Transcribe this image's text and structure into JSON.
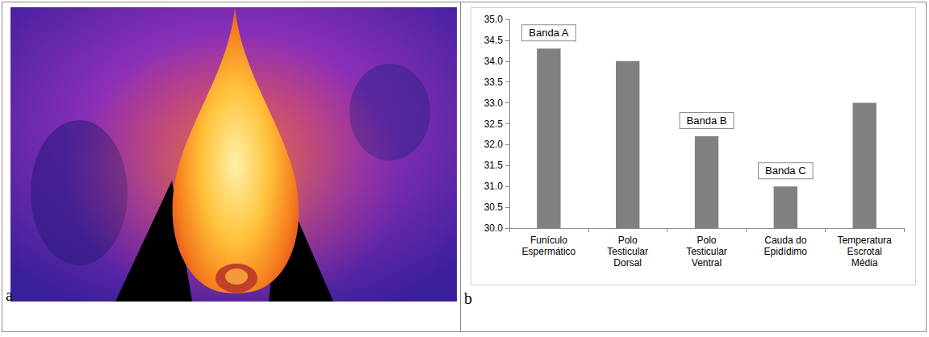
{
  "panel_labels": [
    "a",
    "b"
  ],
  "chart_data": {
    "type": "bar",
    "categories": [
      "Funículo Espermático",
      "Polo Testicular Dorsal",
      "Polo Testicular Ventral",
      "Cauda do Epidídimo",
      "Temperatura Escrotal Média"
    ],
    "values": [
      34.3,
      34.0,
      32.2,
      31.0,
      33.0
    ],
    "color": "#808080",
    "ylim": [
      30,
      35
    ],
    "yticks": [
      {
        "value": 30,
        "label": "30.0"
      },
      {
        "value": 30.5,
        "label": "30.5"
      },
      {
        "value": 31,
        "label": "31.0"
      },
      {
        "value": 31.5,
        "label": "31.5"
      },
      {
        "value": 32,
        "label": "32.0"
      },
      {
        "value": 32.5,
        "label": "32.5"
      },
      {
        "value": 33,
        "label": "33.0"
      },
      {
        "value": 33.5,
        "label": "33.5"
      },
      {
        "value": 34,
        "label": "34.0"
      },
      {
        "value": 34.5,
        "label": "34.5"
      },
      {
        "value": 35,
        "label": "35.0"
      }
    ],
    "grid": false,
    "annotations": [
      {
        "text": "Banda A",
        "category": "Funículo Espermático"
      },
      {
        "text": "Banda B",
        "category": "Polo Testicular Ventral"
      },
      {
        "text": "Banda C",
        "category": "Cauda do Epidídimo"
      }
    ]
  }
}
